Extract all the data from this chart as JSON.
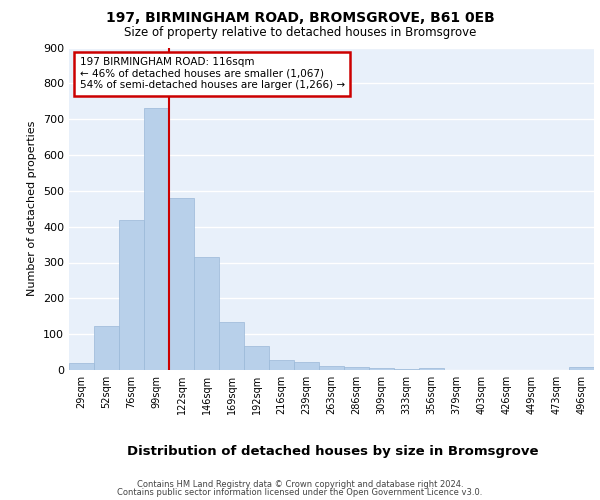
{
  "title1": "197, BIRMINGHAM ROAD, BROMSGROVE, B61 0EB",
  "title2": "Size of property relative to detached houses in Bromsgrove",
  "xlabel": "Distribution of detached houses by size in Bromsgrove",
  "ylabel": "Number of detached properties",
  "bar_color": "#b8d0ea",
  "bar_edge_color": "#9ab8d8",
  "background_color": "#e8f0fa",
  "grid_color": "#ffffff",
  "categories": [
    "29sqm",
    "52sqm",
    "76sqm",
    "99sqm",
    "122sqm",
    "146sqm",
    "169sqm",
    "192sqm",
    "216sqm",
    "239sqm",
    "263sqm",
    "286sqm",
    "309sqm",
    "333sqm",
    "356sqm",
    "379sqm",
    "403sqm",
    "426sqm",
    "449sqm",
    "473sqm",
    "496sqm"
  ],
  "values": [
    20,
    122,
    420,
    730,
    480,
    315,
    133,
    67,
    28,
    22,
    10,
    8,
    5,
    3,
    6,
    1,
    1,
    1,
    0,
    0,
    8
  ],
  "vline_color": "#cc0000",
  "vline_x": 3.5,
  "annotation_line1": "197 BIRMINGHAM ROAD: 116sqm",
  "annotation_line2": "← 46% of detached houses are smaller (1,067)",
  "annotation_line3": "54% of semi-detached houses are larger (1,266) →",
  "annotation_box_color": "#ffffff",
  "annotation_box_edge": "#cc0000",
  "ylim": [
    0,
    900
  ],
  "yticks": [
    0,
    100,
    200,
    300,
    400,
    500,
    600,
    700,
    800,
    900
  ],
  "footer1": "Contains HM Land Registry data © Crown copyright and database right 2024.",
  "footer2": "Contains public sector information licensed under the Open Government Licence v3.0."
}
